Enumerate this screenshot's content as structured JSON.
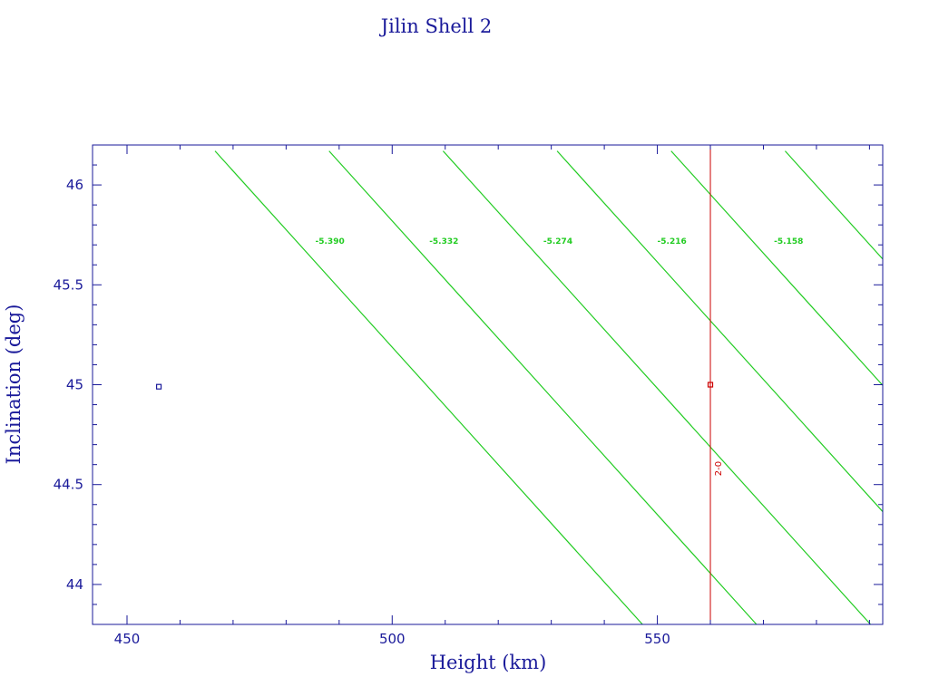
{
  "chart_data": {
    "type": "line",
    "title": "Jilin Shell 2",
    "xlabel": "Height (km)",
    "ylabel": "Inclination (deg)",
    "xlim": [
      443.5,
      592.5
    ],
    "ylim": [
      43.8,
      46.2
    ],
    "x_ticks": [
      450,
      500,
      550
    ],
    "x_tick_labels": [
      "450",
      "500",
      "550"
    ],
    "y_ticks": [
      44,
      44.5,
      45,
      45.5,
      46
    ],
    "y_tick_labels": [
      "44",
      "44.5",
      "45",
      "45.5",
      "46"
    ],
    "grid": false,
    "colors": {
      "axis": "#1a1a9a",
      "contour": "#22cc22",
      "marker": "#cc0000",
      "point": "#1a1a9a"
    },
    "contours": [
      {
        "label": "-5.390",
        "x_top": 466.6,
        "x_bottom": 547.2,
        "label_x": 485.5
      },
      {
        "label": "-5.332",
        "x_top": 488.1,
        "x_bottom": 568.7,
        "label_x": 507.0
      },
      {
        "label": "-5.274",
        "x_top": 509.6,
        "x_bottom": 590.2,
        "label_x": 528.5
      },
      {
        "label": "-5.216",
        "x_top": 531.1,
        "x_bottom": 611.7,
        "label_x": 550.0
      },
      {
        "label": "-5.158",
        "x_top": 552.6,
        "x_bottom": 633.2,
        "label_x": 572.0
      },
      {
        "label": "",
        "x_top": 574.1,
        "x_bottom": 654.7,
        "label_x": null
      }
    ],
    "contour_label_y": 45.72,
    "vertical_line": {
      "x": 560.0,
      "label": "2-0",
      "label_y": 44.58
    },
    "markers": [
      {
        "x": 560.0,
        "y": 45.0,
        "shape": "square",
        "color": "#cc0000"
      },
      {
        "x": 456.0,
        "y": 44.99,
        "shape": "square",
        "color": "#1a1a9a"
      }
    ]
  }
}
